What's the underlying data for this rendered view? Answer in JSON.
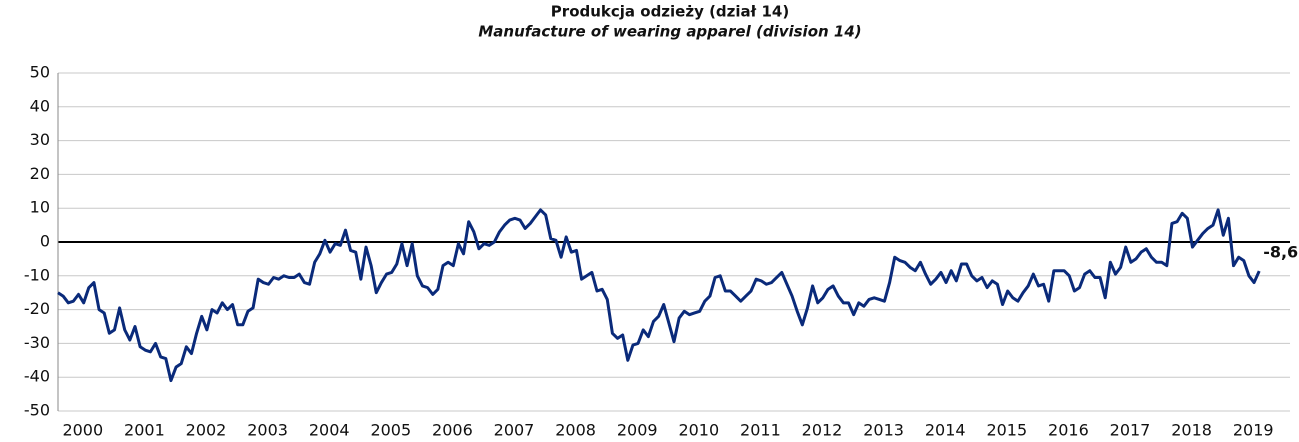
{
  "chart_data": {
    "type": "line",
    "title": "Produkcja odzieży (dział 14)",
    "subtitle": "Manufacture of wearing apparel (division 14)",
    "categories": [
      null,
      null,
      null,
      null,
      null,
      null,
      "2000",
      null,
      null,
      null,
      null,
      null,
      null,
      null,
      null,
      null,
      null,
      null,
      "2001",
      null,
      null,
      null,
      null,
      null,
      null,
      null,
      null,
      null,
      null,
      null,
      "2002",
      null,
      null,
      null,
      null,
      null,
      null,
      null,
      null,
      null,
      null,
      null,
      "2003",
      null,
      null,
      null,
      null,
      null,
      null,
      null,
      null,
      null,
      null,
      null,
      "2004",
      null,
      null,
      null,
      null,
      null,
      null,
      null,
      null,
      null,
      null,
      null,
      "2005",
      null,
      null,
      null,
      null,
      null,
      null,
      null,
      null,
      null,
      null,
      null,
      "2006",
      null,
      null,
      null,
      null,
      null,
      null,
      null,
      null,
      null,
      null,
      null,
      "2007",
      null,
      null,
      null,
      null,
      null,
      null,
      null,
      null,
      null,
      null,
      null,
      "2008",
      null,
      null,
      null,
      null,
      null,
      null,
      null,
      null,
      null,
      null,
      null,
      "2009",
      null,
      null,
      null,
      null,
      null,
      null,
      null,
      null,
      null,
      null,
      null,
      "2010",
      null,
      null,
      null,
      null,
      null,
      null,
      null,
      null,
      null,
      null,
      null,
      "2011",
      null,
      null,
      null,
      null,
      null,
      null,
      null,
      null,
      null,
      null,
      null,
      "2012",
      null,
      null,
      null,
      null,
      null,
      null,
      null,
      null,
      null,
      null,
      null,
      "2013",
      null,
      null,
      null,
      null,
      null,
      null,
      null,
      null,
      null,
      null,
      null,
      "2014",
      null,
      null,
      null,
      null,
      null,
      null,
      null,
      null,
      null,
      null,
      null,
      "2015",
      null,
      null,
      null,
      null,
      null,
      null,
      null,
      null,
      null,
      null,
      null,
      "2016",
      null,
      null,
      null,
      null,
      null,
      null,
      null,
      null,
      null,
      null,
      null,
      "2017",
      null,
      null,
      null,
      null,
      null,
      null,
      null,
      null,
      null,
      null,
      null,
      "2018",
      null,
      null,
      null,
      null,
      null,
      null,
      null,
      null,
      null,
      null,
      null,
      "2019"
    ],
    "series": [
      {
        "name": "Manufacture of wearing apparel",
        "color": "#0a2a7a",
        "values": [
          -15,
          -16,
          -18,
          -17.5,
          -15.5,
          -18,
          -13.5,
          -12,
          -20,
          -21,
          -27,
          -26,
          -19.5,
          -26,
          -29,
          -25,
          -31,
          -32,
          -32.5,
          -30,
          -34,
          -34.5,
          -41,
          -37,
          -36,
          -31,
          -33,
          -27,
          -22,
          -26,
          -20,
          -21,
          -18,
          -20,
          -18.5,
          -24.5,
          -24.5,
          -20.5,
          -19.5,
          -11,
          -12,
          -12.5,
          -10.5,
          -11,
          -10,
          -10.5,
          -10.5,
          -9.5,
          -12,
          -12.5,
          -6,
          -3.5,
          0.5,
          -3,
          -0.5,
          -1,
          3.5,
          -2.5,
          -3,
          -11,
          -1.5,
          -7,
          -15,
          -12,
          -9.5,
          -9,
          -6.5,
          -0.5,
          -7,
          -0.5,
          -10,
          -13,
          -13.5,
          -15.5,
          -14,
          -7,
          -6,
          -7,
          -0.5,
          -3.5,
          6,
          3,
          -2,
          -0.5,
          -1,
          0,
          3,
          5,
          6.5,
          7,
          6.5,
          4,
          5.5,
          7.5,
          9.5,
          8,
          1,
          0.5,
          -4.5,
          1.5,
          -3,
          -2.5,
          -11,
          -10,
          -9,
          -14.5,
          -14,
          -17,
          -27,
          -28.5,
          -27.5,
          -35,
          -30.5,
          -30,
          -26,
          -28,
          -23.5,
          -22,
          -18.5,
          -24,
          -29.5,
          -22.5,
          -20.5,
          -21.5,
          -21,
          -20.5,
          -17.5,
          -16,
          -10.5,
          -10,
          -14.5,
          -14.5,
          -16,
          -17.5,
          -16,
          -14.5,
          -11,
          -11.5,
          -12.5,
          -12,
          -10.5,
          -9,
          -12.5,
          -16,
          -20.5,
          -24.5,
          -19.5,
          -13,
          -18,
          -16.5,
          -14,
          -13,
          -16,
          -18,
          -18,
          -21.5,
          -18,
          -19,
          -17,
          -16.5,
          -17,
          -17.5,
          -12,
          -4.5,
          -5.5,
          -6,
          -7.5,
          -8.5,
          -6,
          -9.5,
          -12.5,
          -11,
          -9,
          -12,
          -8.5,
          -11.5,
          -6.5,
          -6.5,
          -10,
          -11.5,
          -10.5,
          -13.5,
          -11.5,
          -12.5,
          -18.5,
          -14.5,
          -16.5,
          -17.5,
          -15,
          -13,
          -9.5,
          -13,
          -12.5,
          -17.5,
          -8.5,
          -8.5,
          -8.5,
          -10,
          -14.5,
          -13.5,
          -9.5,
          -8.5,
          -10.5,
          -10.5,
          -16.5,
          -6,
          -9.5,
          -7.5,
          -1.5,
          -6,
          -5,
          -3,
          -2,
          -4.5,
          -6,
          -6,
          -7,
          5.5,
          6,
          8.5,
          7,
          -1.5,
          0.5,
          2.5,
          4,
          5,
          9.5,
          2,
          7,
          -7,
          -4.5,
          -5.5,
          -10,
          -12,
          -8.6
        ],
        "value_labels": [
          null,
          null,
          null,
          null,
          null,
          null,
          null,
          null,
          null,
          null,
          null,
          null,
          null,
          null,
          null,
          null,
          null,
          null,
          null,
          null,
          null,
          null,
          null,
          null,
          null,
          null,
          null,
          null,
          null,
          null,
          null,
          null,
          null,
          null,
          null,
          null,
          null,
          null,
          null,
          null,
          null,
          null,
          null,
          null,
          null,
          null,
          null,
          null,
          null,
          null,
          null,
          null,
          null,
          null,
          null,
          null,
          null,
          null,
          null,
          null,
          null,
          null,
          null,
          null,
          null,
          null,
          null,
          null,
          null,
          null,
          null,
          null,
          null,
          null,
          null,
          null,
          null,
          null,
          null,
          null,
          null,
          null,
          null,
          null,
          null,
          null,
          null,
          null,
          null,
          null,
          null,
          null,
          null,
          null,
          null,
          null,
          null,
          null,
          null,
          null,
          null,
          null,
          null,
          null,
          null,
          null,
          null,
          null,
          null,
          null,
          null,
          null,
          null,
          null,
          null,
          null,
          null,
          null,
          null,
          null,
          null,
          null,
          null,
          null,
          null,
          null,
          null,
          null,
          null,
          null,
          null,
          null,
          null,
          null,
          null,
          null,
          null,
          null,
          null,
          null,
          null,
          null,
          null,
          null,
          null,
          null,
          null,
          null,
          null,
          null,
          null,
          null,
          null,
          null,
          null,
          null,
          null,
          null,
          null,
          null,
          null,
          null,
          null,
          null,
          null,
          null,
          null,
          null,
          null,
          null,
          null,
          null,
          null,
          null,
          null,
          null,
          null,
          null,
          null,
          null,
          null,
          null,
          null,
          null,
          null,
          null,
          null,
          null,
          null,
          null,
          null,
          null,
          null,
          null,
          null,
          null,
          null,
          null,
          null,
          null,
          null,
          null,
          null,
          null,
          null,
          null,
          null,
          null,
          null,
          null,
          null,
          null,
          null,
          null,
          null,
          null,
          null,
          null,
          null,
          null,
          null,
          null,
          null,
          null,
          null,
          null,
          null,
          null,
          null,
          null,
          null,
          null,
          null,
          null,
          "-8,6"
        ]
      }
    ],
    "ylim": [
      -50,
      50
    ],
    "yticks": [
      -50,
      -40,
      -30,
      -20,
      -10,
      0,
      10,
      20,
      30,
      40,
      50
    ],
    "grid": true
  }
}
